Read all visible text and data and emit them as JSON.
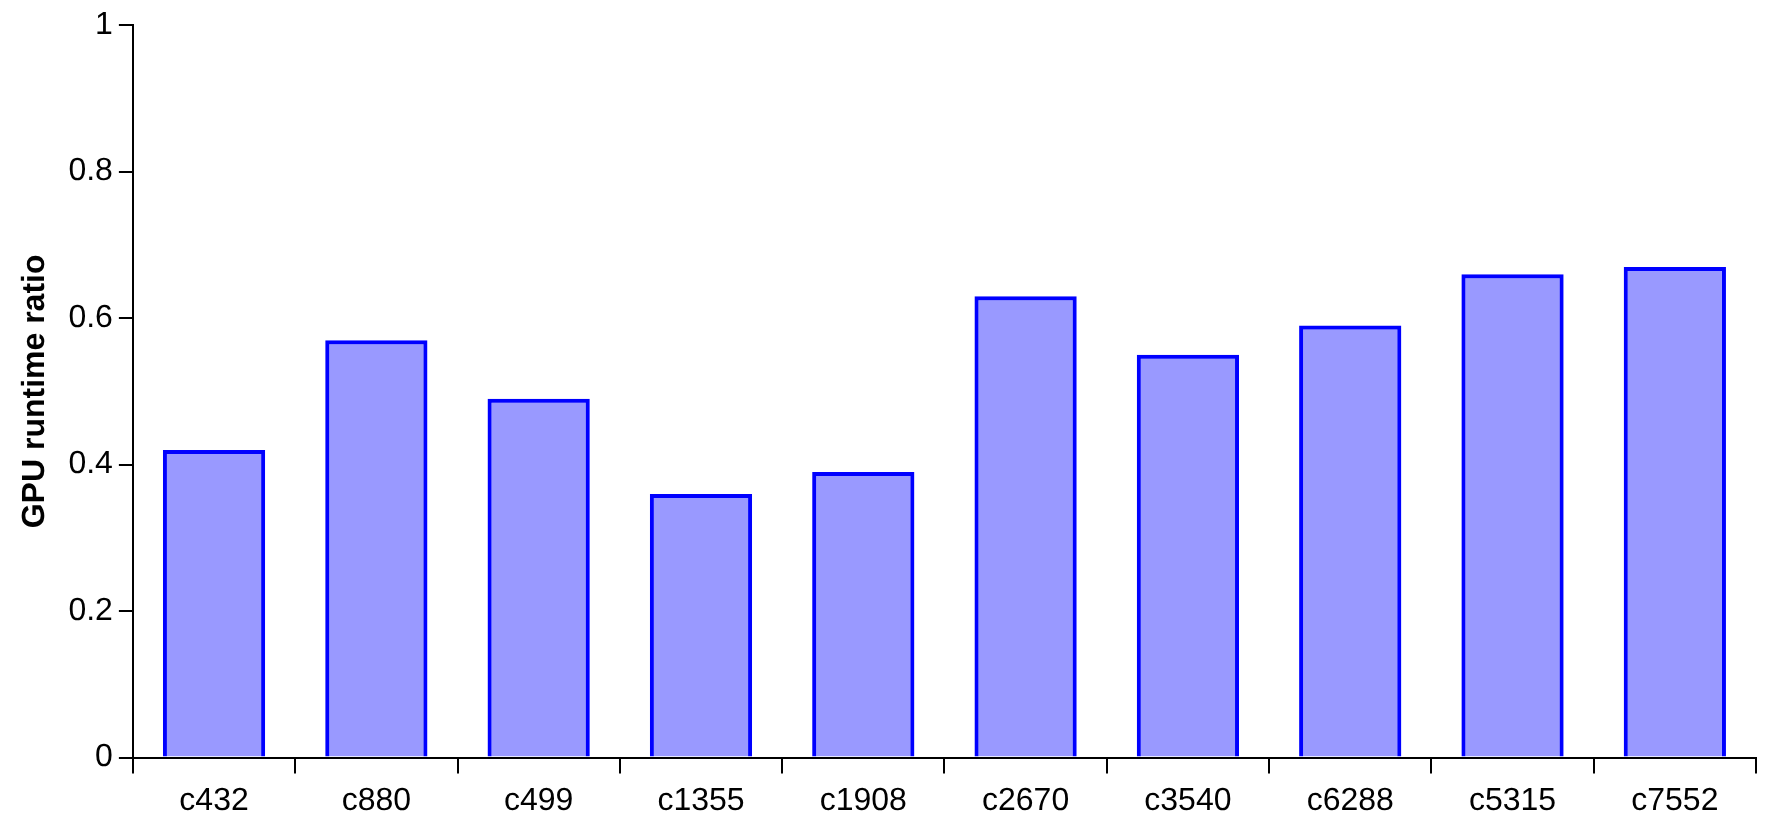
{
  "chart_data": {
    "type": "bar",
    "ylabel": "GPU runtime ratio",
    "categories": [
      "c432",
      "c880",
      "c499",
      "c1355",
      "c1908",
      "c2670",
      "c3540",
      "c6288",
      "c5315",
      "c7552"
    ],
    "series": [
      {
        "color": "#0000ff",
        "values": [
          0.42,
          0.57,
          0.49,
          0.36,
          0.39,
          0.63,
          0.55,
          0.59,
          0.66,
          0.67
        ]
      }
    ],
    "ylim": [
      0,
      1
    ],
    "yticks": [
      0,
      0.2,
      0.4,
      0.6,
      0.8,
      1
    ],
    "grid": false,
    "legend": false
  }
}
